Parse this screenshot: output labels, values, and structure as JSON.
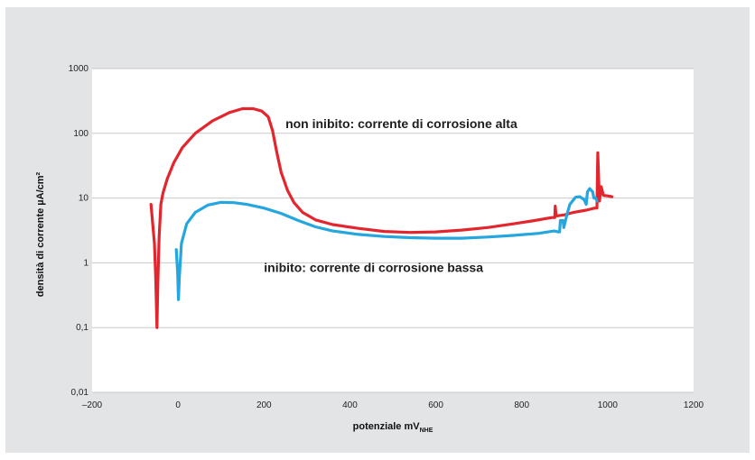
{
  "chart_data": {
    "type": "line",
    "xlabel": {
      "main": "potenziale mV",
      "sub": "NHE"
    },
    "ylabel": "densità di corrente µA/cm²",
    "xlim": [
      -200,
      1200
    ],
    "ylim": [
      0.01,
      1000
    ],
    "yscale": "log",
    "grid": "horizontal",
    "x_ticks": [
      {
        "value": -200,
        "label": "–200"
      },
      {
        "value": 0,
        "label": "0"
      },
      {
        "value": 200,
        "label": "200"
      },
      {
        "value": 400,
        "label": "400"
      },
      {
        "value": 600,
        "label": "600"
      },
      {
        "value": 800,
        "label": "800"
      },
      {
        "value": 1000,
        "label": "1000"
      },
      {
        "value": 1200,
        "label": "1200"
      }
    ],
    "y_ticks": [
      {
        "value": 1000,
        "label": "1000"
      },
      {
        "value": 100,
        "label": "100"
      },
      {
        "value": 10,
        "label": "10"
      },
      {
        "value": 1,
        "label": "1"
      },
      {
        "value": 0.1,
        "label": "0,1"
      },
      {
        "value": 0.01,
        "label": "0,01"
      }
    ],
    "annotations": [
      {
        "text": "non inibito: corrente di corrosione alta",
        "x": 250,
        "y": 120
      },
      {
        "text": "inibito: corrente di corrosione bassa",
        "x": 200,
        "y": 0.72
      }
    ],
    "series": [
      {
        "color": "#e3262d",
        "points": [
          [
            -63,
            8
          ],
          [
            -55,
            2
          ],
          [
            -52,
            0.6
          ],
          [
            -49,
            0.1
          ],
          [
            -47,
            0.5
          ],
          [
            -44,
            2.5
          ],
          [
            -40,
            8
          ],
          [
            -35,
            12
          ],
          [
            -25,
            20
          ],
          [
            -10,
            35
          ],
          [
            10,
            60
          ],
          [
            40,
            100
          ],
          [
            80,
            155
          ],
          [
            120,
            210
          ],
          [
            150,
            240
          ],
          [
            175,
            240
          ],
          [
            195,
            220
          ],
          [
            210,
            180
          ],
          [
            220,
            110
          ],
          [
            230,
            50
          ],
          [
            240,
            25
          ],
          [
            255,
            13
          ],
          [
            270,
            8.5
          ],
          [
            290,
            6
          ],
          [
            320,
            4.6
          ],
          [
            360,
            3.9
          ],
          [
            420,
            3.4
          ],
          [
            480,
            3.05
          ],
          [
            540,
            2.95
          ],
          [
            600,
            3.0
          ],
          [
            660,
            3.2
          ],
          [
            720,
            3.5
          ],
          [
            780,
            4.0
          ],
          [
            830,
            4.5
          ],
          [
            870,
            5.0
          ],
          [
            877,
            5.0
          ],
          [
            878,
            7.5
          ],
          [
            880,
            5.3
          ],
          [
            900,
            5.5
          ],
          [
            920,
            6.0
          ],
          [
            950,
            6.5
          ],
          [
            970,
            7.0
          ],
          [
            975,
            7.0
          ],
          [
            977,
            50
          ],
          [
            979,
            20
          ],
          [
            981,
            9
          ],
          [
            985,
            15
          ],
          [
            990,
            11
          ],
          [
            1000,
            10.8
          ],
          [
            1010,
            10.5
          ]
        ]
      },
      {
        "color": "#26a6df",
        "points": [
          [
            -4,
            1.6
          ],
          [
            -1,
            0.7
          ],
          [
            1,
            0.27
          ],
          [
            3,
            0.6
          ],
          [
            8,
            2.0
          ],
          [
            20,
            4.0
          ],
          [
            40,
            6.0
          ],
          [
            70,
            7.8
          ],
          [
            100,
            8.6
          ],
          [
            130,
            8.5
          ],
          [
            160,
            8.0
          ],
          [
            200,
            7.0
          ],
          [
            240,
            5.8
          ],
          [
            280,
            4.5
          ],
          [
            320,
            3.6
          ],
          [
            360,
            3.1
          ],
          [
            420,
            2.75
          ],
          [
            480,
            2.55
          ],
          [
            540,
            2.45
          ],
          [
            600,
            2.4
          ],
          [
            660,
            2.4
          ],
          [
            720,
            2.5
          ],
          [
            780,
            2.65
          ],
          [
            840,
            2.85
          ],
          [
            875,
            3.1
          ],
          [
            885,
            3.0
          ],
          [
            888,
            3.0
          ],
          [
            890,
            4.5
          ],
          [
            896,
            4.5
          ],
          [
            898,
            3.5
          ],
          [
            905,
            5.5
          ],
          [
            912,
            8.0
          ],
          [
            925,
            10.3
          ],
          [
            935,
            10.5
          ],
          [
            945,
            9.5
          ],
          [
            950,
            8.0
          ],
          [
            953,
            12.5
          ],
          [
            958,
            14.0
          ],
          [
            965,
            12.5
          ],
          [
            968,
            10.0
          ],
          [
            972,
            10.0
          ],
          [
            975,
            9.0
          ]
        ]
      }
    ]
  }
}
